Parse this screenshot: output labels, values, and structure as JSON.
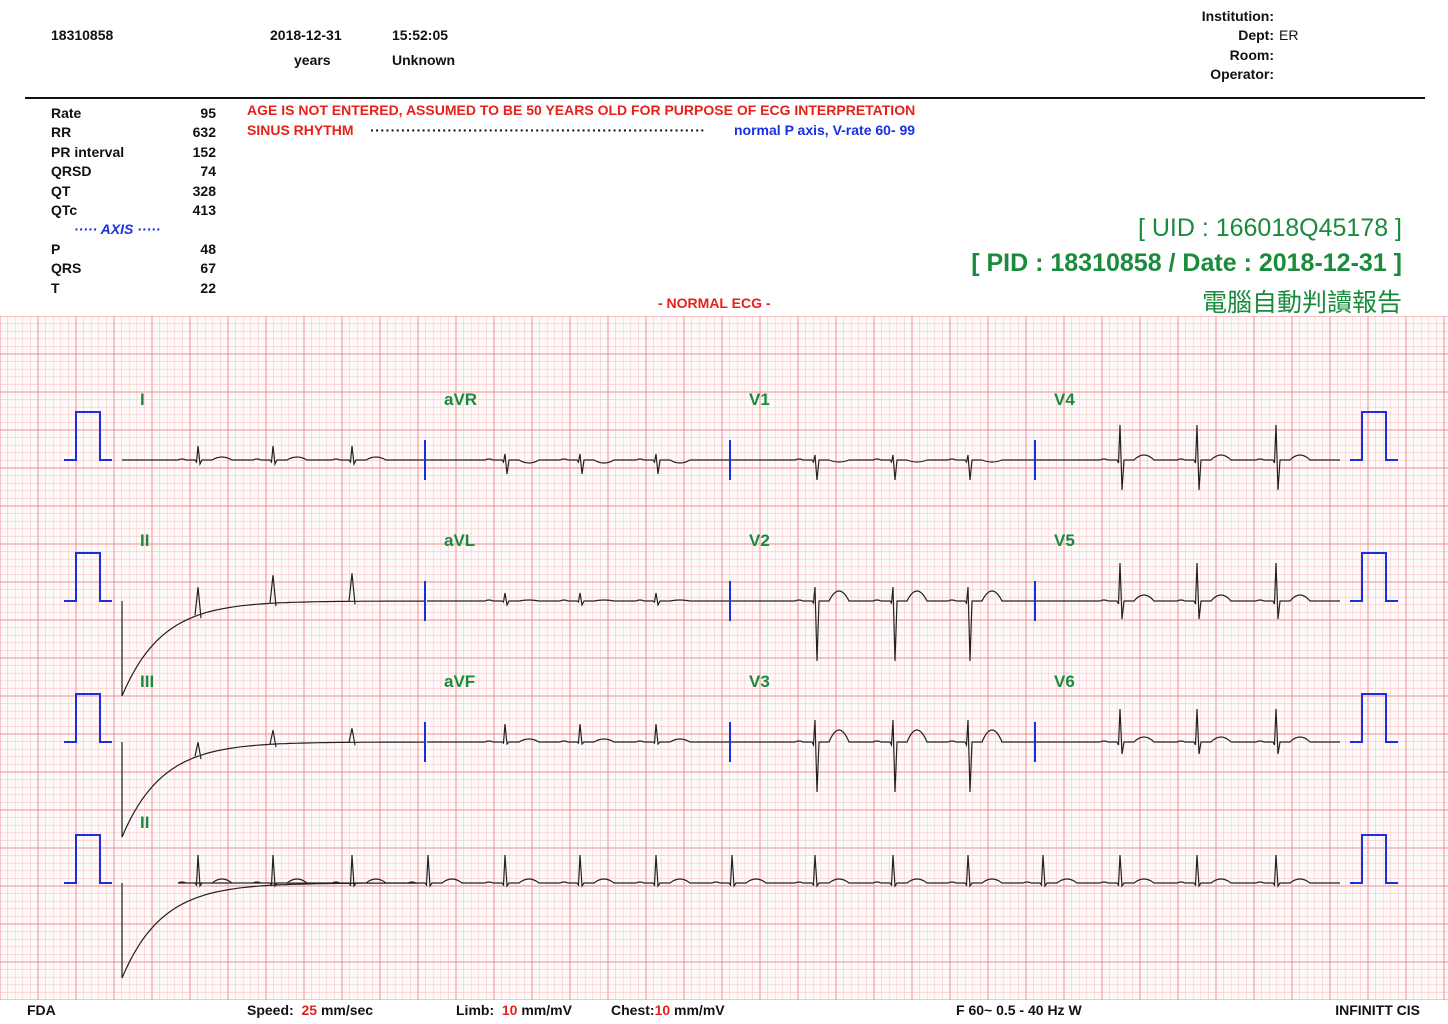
{
  "header": {
    "patient_id": "18310858",
    "date": "2018-12-31",
    "time": "15:52:05",
    "age": "years",
    "sex": "Unknown",
    "institution_label": "Institution:",
    "dept_label": "Dept:",
    "dept_value": "ER",
    "room_label": "Room:",
    "operator_label": "Operator:"
  },
  "measurements": [
    {
      "label": "Rate",
      "value": "95"
    },
    {
      "label": "RR",
      "value": "632"
    },
    {
      "label": "PR interval",
      "value": "152"
    },
    {
      "label": "QRSD",
      "value": "74"
    },
    {
      "label": "QT",
      "value": "328"
    },
    {
      "label": "QTc",
      "value": "413"
    }
  ],
  "axis_title": "·····  AXIS  ·····",
  "axis": [
    {
      "label": "P",
      "value": "48"
    },
    {
      "label": "QRS",
      "value": "67"
    },
    {
      "label": "T",
      "value": "22"
    }
  ],
  "interpretation": {
    "warning": "AGE IS NOT ENTERED, ASSUMED TO BE 50 YEARS OLD FOR PURPOSE OF ECG INTERPRETATION",
    "rhythm": "SINUS RHYTHM",
    "dots": "·································································",
    "rhythm_detail": "normal P axis, V-rate  60- 99",
    "summary": "- NORMAL ECG -"
  },
  "ids": {
    "uid": "[ UID : 166018Q45178 ]",
    "pid": "[ PID : 18310858 / Date : 2018-12-31 ]",
    "report": "電腦自動判讀報告"
  },
  "leads": {
    "row1": [
      "I",
      "aVR",
      "V1",
      "V4"
    ],
    "row2": [
      "II",
      "aVL",
      "V2",
      "V5"
    ],
    "row3": [
      "III",
      "aVF",
      "V3",
      "V6"
    ],
    "row4": [
      "II"
    ]
  },
  "footer": {
    "fda": "FDA",
    "speed_label": "Speed:",
    "speed_value": "25",
    "speed_unit": "mm/sec",
    "limb_label": "Limb:",
    "limb_value": "10",
    "limb_unit": "mm/mV",
    "chest_label": "Chest:",
    "chest_value": "10",
    "chest_unit": "mm/mV",
    "filter": "F 60~  0.5 - 40 Hz W",
    "vendor": "INFINITT CIS"
  },
  "colors": {
    "grid_minor": "#f7c8c8",
    "grid_major": "#ef9090",
    "trace": "#222222",
    "calibration": "#1a2fe0",
    "lead_label": "#1a8a3c"
  }
}
